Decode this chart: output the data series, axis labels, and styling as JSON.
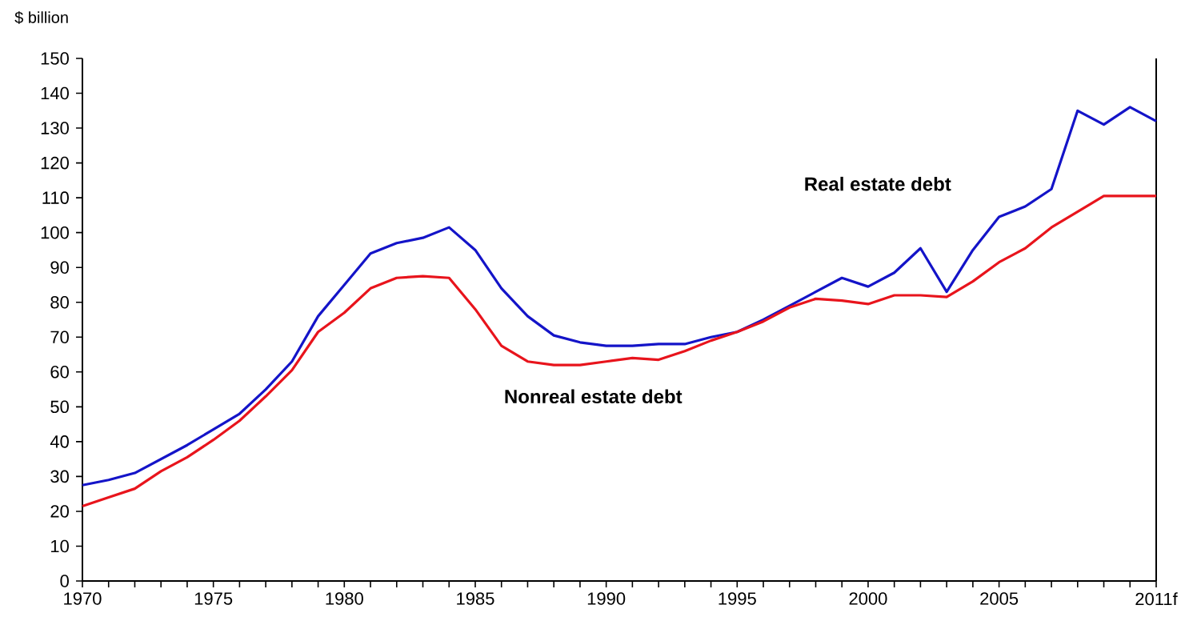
{
  "chart_data": {
    "type": "line",
    "ylabel": "$ billion",
    "x": [
      1970,
      1971,
      1972,
      1973,
      1974,
      1975,
      1976,
      1977,
      1978,
      1979,
      1980,
      1981,
      1982,
      1983,
      1984,
      1985,
      1986,
      1987,
      1988,
      1989,
      1990,
      1991,
      1992,
      1993,
      1994,
      1995,
      1996,
      1997,
      1998,
      1999,
      2000,
      2001,
      2002,
      2003,
      2004,
      2005,
      2006,
      2007,
      2008,
      2009,
      2010,
      2011
    ],
    "series": [
      {
        "name": "Real estate debt",
        "color": "#1414c8",
        "values": [
          27.5,
          29,
          31,
          35,
          39,
          43.5,
          48,
          55,
          63,
          76,
          85,
          94,
          97,
          98.5,
          101.5,
          95,
          84,
          76,
          70.5,
          68.5,
          67.5,
          67.5,
          68,
          68,
          70,
          71.5,
          75,
          79,
          83,
          87,
          84.5,
          88.5,
          95.5,
          83,
          95,
          104.5,
          107.5,
          112.5,
          135,
          131,
          136,
          132
        ]
      },
      {
        "name": "Nonreal estate debt",
        "color": "#e8141c",
        "values": [
          21.5,
          24,
          26.5,
          31.5,
          35.5,
          40.5,
          46,
          53,
          60.5,
          71.5,
          77,
          84,
          87,
          87.5,
          87,
          78,
          67.5,
          63,
          62,
          62,
          63,
          64,
          63.5,
          66,
          69,
          71.5,
          74.5,
          78.5,
          81,
          80.5,
          79.5,
          82,
          82,
          81.5,
          86,
          91.5,
          95.5,
          101.5,
          106,
          110.5,
          110.5,
          110.5
        ]
      }
    ],
    "xlim": [
      1970,
      2011
    ],
    "xticks": [
      1970,
      {
        "value": 1971,
        "label": null
      },
      {
        "value": 1972,
        "label": null
      },
      {
        "value": 1973,
        "label": null
      },
      {
        "value": 1974,
        "label": null
      },
      1975,
      {
        "value": 1976,
        "label": null
      },
      {
        "value": 1977,
        "label": null
      },
      {
        "value": 1978,
        "label": null
      },
      {
        "value": 1979,
        "label": null
      },
      1980,
      {
        "value": 1981,
        "label": null
      },
      {
        "value": 1982,
        "label": null
      },
      {
        "value": 1983,
        "label": null
      },
      {
        "value": 1984,
        "label": null
      },
      1985,
      {
        "value": 1986,
        "label": null
      },
      {
        "value": 1987,
        "label": null
      },
      {
        "value": 1988,
        "label": null
      },
      {
        "value": 1989,
        "label": null
      },
      1990,
      {
        "value": 1991,
        "label": null
      },
      {
        "value": 1992,
        "label": null
      },
      {
        "value": 1993,
        "label": null
      },
      {
        "value": 1994,
        "label": null
      },
      1995,
      {
        "value": 1996,
        "label": null
      },
      {
        "value": 1997,
        "label": null
      },
      {
        "value": 1998,
        "label": null
      },
      {
        "value": 1999,
        "label": null
      },
      2000,
      {
        "value": 2001,
        "label": null
      },
      {
        "value": 2002,
        "label": null
      },
      {
        "value": 2003,
        "label": null
      },
      {
        "value": 2004,
        "label": null
      },
      2005,
      {
        "value": 2006,
        "label": null
      },
      {
        "value": 2007,
        "label": null
      },
      {
        "value": 2008,
        "label": null
      },
      {
        "value": 2009,
        "label": null
      },
      {
        "value": 2010,
        "label": null
      },
      {
        "value": 2011,
        "label": "2011f"
      }
    ],
    "ylim": [
      0,
      150
    ],
    "yticks": [
      0,
      10,
      20,
      30,
      40,
      50,
      60,
      70,
      80,
      90,
      100,
      110,
      120,
      130,
      140,
      150
    ],
    "grid": false,
    "legend": false
  }
}
